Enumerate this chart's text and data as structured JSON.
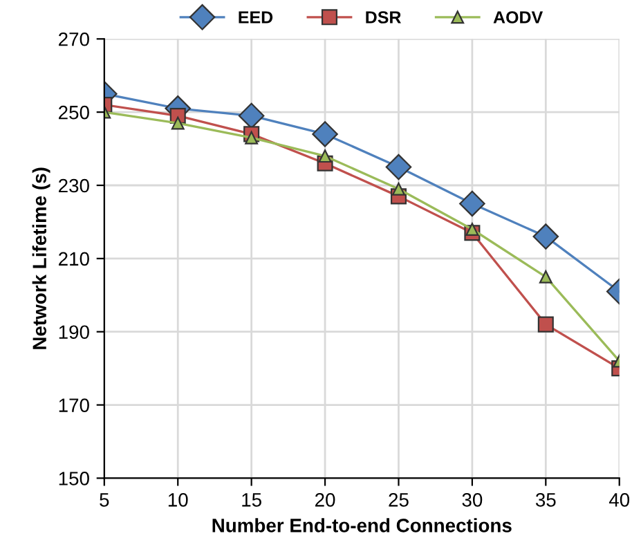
{
  "chart_data": {
    "type": "line",
    "xlabel": "Number End-to-end Connections",
    "ylabel": "Network Lifetime (s)",
    "x": [
      5,
      10,
      15,
      20,
      25,
      30,
      35,
      40
    ],
    "series": [
      {
        "name": "EED",
        "color": "#4f81bd",
        "marker": "diamond",
        "values": [
          255,
          251,
          249,
          244,
          235,
          225,
          216,
          201
        ]
      },
      {
        "name": "DSR",
        "color": "#c0504d",
        "marker": "square",
        "values": [
          252,
          249,
          244,
          236,
          227,
          217,
          192,
          180
        ]
      },
      {
        "name": "AODV",
        "color": "#9bbb59",
        "marker": "triangle",
        "values": [
          250,
          247,
          243,
          238,
          229,
          218,
          205,
          182
        ]
      }
    ],
    "xlim": [
      5,
      40
    ],
    "xticks": [
      5,
      10,
      15,
      20,
      25,
      30,
      35,
      40
    ],
    "ylim": [
      150,
      270
    ],
    "yticks": [
      150,
      170,
      190,
      210,
      230,
      250,
      270
    ],
    "grid": true,
    "legend": "top",
    "line_style": "solid"
  }
}
